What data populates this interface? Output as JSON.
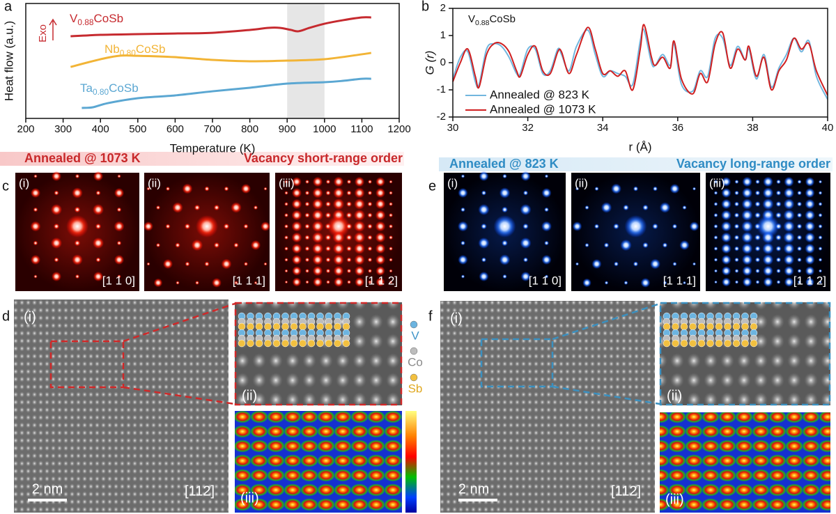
{
  "chart_data": [
    {
      "type": "line",
      "panel": "a",
      "xlabel": "Temperature (K)",
      "ylabel": "Heat flow (a.u.)",
      "annotation": "Exo",
      "xlim": [
        200,
        1200
      ],
      "xticks": [
        200,
        300,
        400,
        500,
        600,
        700,
        800,
        900,
        1000,
        1100,
        1200
      ],
      "ylim": [
        0,
        10
      ],
      "highlight_range": [
        900,
        1000
      ],
      "series": [
        {
          "name": "V0.88CoSb",
          "color": "#c62a2f",
          "x": [
            320,
            400,
            500,
            600,
            700,
            800,
            850,
            880,
            910,
            930,
            960,
            1000,
            1050,
            1100,
            1125
          ],
          "values": [
            7.15,
            7.27,
            7.33,
            7.39,
            7.45,
            7.7,
            7.88,
            7.88,
            7.7,
            7.58,
            7.88,
            8.24,
            8.55,
            8.79,
            8.79
          ]
        },
        {
          "name": "Nb0.80CoSb",
          "color": "#f2b436",
          "x": [
            320,
            400,
            450,
            500,
            600,
            700,
            800,
            900,
            1000,
            1100,
            1125
          ],
          "values": [
            4.48,
            5.15,
            5.45,
            5.45,
            5.33,
            5.09,
            4.97,
            5.03,
            5.15,
            5.58,
            5.7
          ]
        },
        {
          "name": "Ta0.80CoSb",
          "color": "#5ba7d2",
          "x": [
            350,
            380,
            420,
            500,
            600,
            700,
            800,
            900,
            1000,
            1050,
            1100,
            1125
          ],
          "values": [
            0.91,
            0.97,
            1.33,
            1.76,
            2.0,
            2.36,
            2.67,
            3.03,
            3.15,
            3.27,
            3.45,
            3.45
          ]
        }
      ]
    },
    {
      "type": "line",
      "panel": "b",
      "title": "V0.88CoSb",
      "xlabel": "r (Å)",
      "ylabel": "G (r)",
      "xlim": [
        30,
        40
      ],
      "xticks": [
        30,
        32,
        34,
        36,
        38,
        40
      ],
      "ylim": [
        -2,
        2
      ],
      "yticks": [
        -2,
        -1,
        0,
        1,
        2
      ],
      "legend": "lower left",
      "x": [
        30.0,
        30.2,
        30.4,
        30.6,
        30.7,
        30.9,
        31.1,
        31.3,
        31.5,
        31.7,
        31.8,
        32.0,
        32.2,
        32.4,
        32.6,
        32.8,
        32.9,
        33.1,
        33.3,
        33.6,
        33.8,
        34.0,
        34.2,
        34.4,
        34.6,
        34.8,
        35.0,
        35.1,
        35.3,
        35.4,
        35.6,
        35.8,
        35.9,
        36.1,
        36.4,
        36.6,
        36.8,
        37.0,
        37.2,
        37.4,
        37.6,
        37.8,
        37.9,
        38.1,
        38.3,
        38.5,
        38.7,
        38.9,
        39.1,
        39.3,
        39.5,
        39.7,
        40.0
      ],
      "series": [
        {
          "name": "Annealed @ 823 K",
          "color": "#72b6de",
          "values": [
            -0.6,
            0.2,
            0.4,
            -0.7,
            -0.8,
            0.5,
            0.7,
            0.6,
            0.2,
            -0.4,
            -0.4,
            0.5,
            0.5,
            -0.4,
            -0.3,
            0.5,
            0.3,
            -0.3,
            0.6,
            1.2,
            0.3,
            -0.5,
            -0.3,
            -0.4,
            -0.5,
            -0.8,
            0.8,
            1.2,
            0.0,
            -0.1,
            0.3,
            -0.1,
            0.7,
            -0.8,
            -1.05,
            -0.3,
            -0.5,
            0.9,
            0.9,
            -0.1,
            0.6,
            0.1,
            0.5,
            -0.6,
            0.3,
            -0.9,
            -0.2,
            0.3,
            0.9,
            0.4,
            0.8,
            -0.5,
            -1.35
          ]
        },
        {
          "name": "Annealed @ 1073 K",
          "color": "#d01f20",
          "values": [
            -0.7,
            0,
            0.5,
            -0.5,
            -0.9,
            0.3,
            0.7,
            0.7,
            0.4,
            -0.3,
            -0.5,
            0.3,
            0.6,
            -0.3,
            -0.4,
            0.4,
            0.4,
            -0.4,
            0.3,
            1.3,
            0.5,
            -0.4,
            -0.3,
            -0.5,
            -0.3,
            -1.0,
            0.5,
            1.4,
            0.2,
            -0.1,
            0.2,
            -0.2,
            0.8,
            -0.6,
            -1.15,
            -0.4,
            -0.7,
            0.7,
            1.1,
            -0.2,
            0.5,
            0.1,
            0.6,
            -0.5,
            0.2,
            -1.0,
            -0.3,
            0.1,
            0.9,
            0.5,
            0.7,
            -0.3,
            -1.2
          ]
        }
      ]
    }
  ],
  "panels": {
    "c": {
      "letter": "c",
      "header": "Annealed @ 1073 K",
      "order": "Vacancy short-range order",
      "images": [
        {
          "label": "(i)",
          "zone": "[1 1 0]"
        },
        {
          "label": "(ii)",
          "zone": "[1 1 1]"
        },
        {
          "label": "(iii)",
          "zone": "[1 1 2]"
        }
      ]
    },
    "e": {
      "letter": "e",
      "header": "Annealed @ 823 K",
      "order": "Vacancy long-range order",
      "images": [
        {
          "label": "(i)",
          "zone": "[1 1 0]"
        },
        {
          "label": "(ii)",
          "zone": "[1 1 1]"
        },
        {
          "label": "(iii)",
          "zone": "[1 1 2]"
        }
      ]
    },
    "d": {
      "letter": "d",
      "labels": [
        "(i)",
        "(ii)",
        "(iii)"
      ],
      "scale": "2 nm",
      "zone": "[112]",
      "legend": [
        "V",
        "Co",
        "Sb"
      ]
    },
    "f": {
      "letter": "f",
      "labels": [
        "(i)",
        "(ii)",
        "(iii)"
      ],
      "scale": "2 nm",
      "zone": "[112]"
    }
  }
}
